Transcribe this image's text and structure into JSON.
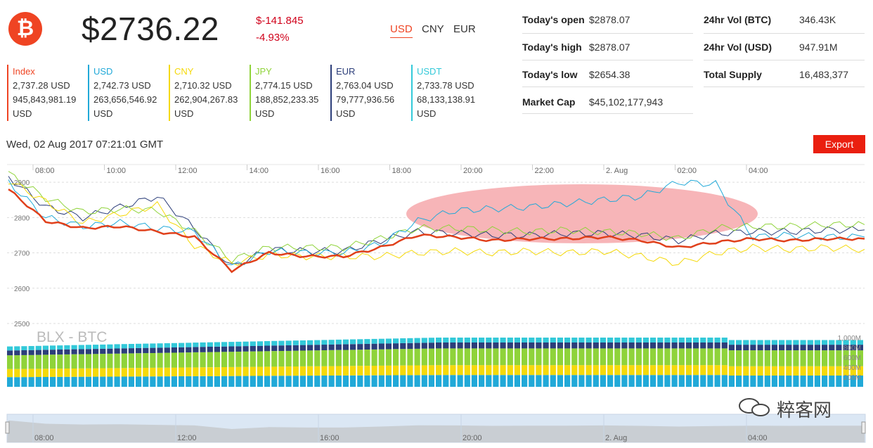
{
  "header": {
    "logo_symbol": "₿",
    "price": "$2736.22",
    "change_abs": "$-141.845",
    "change_pct": "-4.93%",
    "currencies": [
      {
        "label": "USD",
        "active": true
      },
      {
        "label": "CNY",
        "active": false
      },
      {
        "label": "EUR",
        "active": false
      }
    ]
  },
  "stats": {
    "left": [
      {
        "label": "Today's open",
        "value": "$2878.07"
      },
      {
        "label": "Today's high",
        "value": "$2878.07"
      },
      {
        "label": "Today's low",
        "value": "$2654.38"
      },
      {
        "label": "Market Cap",
        "value": "$45,102,177,943"
      }
    ],
    "right": [
      {
        "label": "24hr Vol (BTC)",
        "value": "346.43K"
      },
      {
        "label": "24hr Vol (USD)",
        "value": "947.91M"
      },
      {
        "label": "Total Supply",
        "value": "16,483,377"
      }
    ]
  },
  "exchanges": [
    {
      "name": "Index",
      "color": "#ef4423",
      "price": "2,737.28 USD",
      "volume": "945,843,981.19",
      "unit": "USD"
    },
    {
      "name": "USD",
      "color": "#21a9d8",
      "price": "2,742.73 USD",
      "volume": "263,656,546.92",
      "unit": "USD"
    },
    {
      "name": "CNY",
      "color": "#f5d90a",
      "price": "2,710.32 USD",
      "volume": "262,904,267.83",
      "unit": "USD"
    },
    {
      "name": "JPY",
      "color": "#8fd33a",
      "price": "2,774.15 USD",
      "volume": "188,852,233.35",
      "unit": "USD"
    },
    {
      "name": "EUR",
      "color": "#2c3e7a",
      "price": "2,763.04 USD",
      "volume": "79,777,936.56",
      "unit": "USD"
    },
    {
      "name": "USDT",
      "color": "#33c9d9",
      "price": "2,733.78 USD",
      "volume": "68,133,138.91",
      "unit": "USD"
    }
  ],
  "timestamp": "Wed, 02 Aug 2017 07:21:01 GMT",
  "export_label": "Export",
  "watermark_text": "粹客网",
  "chart_data": {
    "type": "line",
    "title": "BLX - BTC",
    "x_ticks": [
      "08:00",
      "10:00",
      "12:00",
      "14:00",
      "16:00",
      "18:00",
      "20:00",
      "22:00",
      "2. Aug",
      "02:00",
      "04:00"
    ],
    "navigator_ticks": [
      "08:00",
      "12:00",
      "16:00",
      "20:00",
      "2. Aug",
      "04:00"
    ],
    "y_ticks": [
      2500,
      2600,
      2700,
      2800,
      2900
    ],
    "ylim": [
      2500,
      2950
    ],
    "volume_ticks": [
      "1,000M",
      "800M",
      "600M",
      "400M",
      "200M"
    ],
    "x_hours": [
      0,
      1,
      2,
      3,
      4,
      5,
      6,
      7,
      8,
      9,
      10,
      11,
      12,
      13,
      14,
      15,
      16,
      17,
      18,
      19,
      20,
      21,
      22,
      23
    ],
    "series": [
      {
        "name": "Index",
        "color": "#e0401b",
        "width": 2.5,
        "values": [
          2880,
          2790,
          2770,
          2775,
          2760,
          2745,
          2650,
          2700,
          2690,
          2690,
          2715,
          2750,
          2745,
          2735,
          2740,
          2740,
          2745,
          2735,
          2715,
          2730,
          2740,
          2735,
          2740,
          2740
        ]
      },
      {
        "name": "USD",
        "color": "#21a9d8",
        "width": 1,
        "values": [
          2900,
          2800,
          2775,
          2785,
          2770,
          2760,
          2660,
          2705,
          2700,
          2700,
          2725,
          2790,
          2820,
          2825,
          2830,
          2840,
          2850,
          2860,
          2900,
          2895,
          2745,
          2750,
          2745,
          2745
        ]
      },
      {
        "name": "CNY",
        "color": "#f5d90a",
        "width": 1,
        "values": [
          2905,
          2845,
          2785,
          2810,
          2835,
          2720,
          2670,
          2695,
          2690,
          2690,
          2690,
          2700,
          2705,
          2700,
          2705,
          2700,
          2705,
          2690,
          2670,
          2700,
          2715,
          2710,
          2715,
          2710
        ]
      },
      {
        "name": "JPY",
        "color": "#8fd33a",
        "width": 1,
        "values": [
          2925,
          2855,
          2815,
          2825,
          2820,
          2760,
          2680,
          2715,
          2715,
          2715,
          2740,
          2770,
          2770,
          2765,
          2760,
          2765,
          2760,
          2755,
          2740,
          2770,
          2775,
          2775,
          2780,
          2780
        ]
      },
      {
        "name": "EUR",
        "color": "#2c3e7a",
        "width": 1,
        "values": [
          2915,
          2830,
          2800,
          2830,
          2860,
          2770,
          2660,
          2710,
          2705,
          2705,
          2735,
          2760,
          2755,
          2750,
          2750,
          2755,
          2755,
          2750,
          2735,
          2755,
          2760,
          2760,
          2765,
          2765
        ]
      }
    ],
    "volume_series": [
      {
        "name": "USD",
        "color": "#21a9d8"
      },
      {
        "name": "CNY",
        "color": "#f5d90a"
      },
      {
        "name": "JPY",
        "color": "#8fd33a"
      },
      {
        "name": "EUR",
        "color": "#2c3e7a"
      },
      {
        "name": "USDT",
        "color": "#33c9d9"
      }
    ],
    "highlight_color": "#f7b5b8"
  }
}
